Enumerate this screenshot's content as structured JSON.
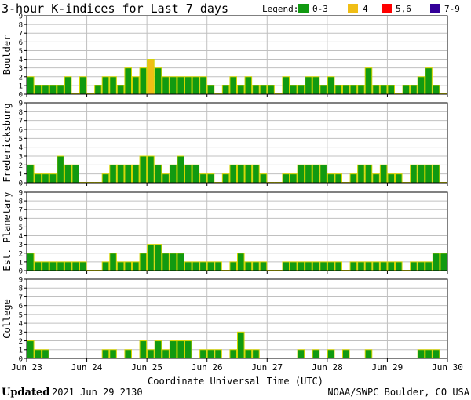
{
  "title": "3-hour K-indices for Last 7 days",
  "legend": {
    "label": "Legend:",
    "items": [
      {
        "label": "0-3",
        "color": "#119a11"
      },
      {
        "label": "4",
        "color": "#f0be16"
      },
      {
        "label": "5,6",
        "color": "#ff0000"
      },
      {
        "label": "7-9",
        "color": "#330099"
      }
    ]
  },
  "footer": {
    "updated_label": "Updated",
    "updated_value": "2021 Jun 29 2130",
    "source": "NOAA/SWPC Boulder, CO USA"
  },
  "colors": {
    "bar_stroke": "#d4d400",
    "grid": "#c0c0c0",
    "axis": "#000000"
  },
  "chart_data": {
    "type": "bar",
    "xlabel": "Coordinate Universal Time (UTC)",
    "x_ticks": [
      "Jun 23",
      "Jun 24",
      "Jun 25",
      "Jun 26",
      "Jun 27",
      "Jun 28",
      "Jun 29",
      "Jun 30"
    ],
    "ylim": [
      0,
      9
    ],
    "y_ticks": [
      0,
      1,
      2,
      3,
      4,
      5,
      6,
      7,
      8,
      9
    ],
    "grid": true,
    "legend_position": "top-right",
    "intervals_per_day": 8,
    "series": [
      {
        "name": "Boulder",
        "values": [
          2,
          1,
          1,
          1,
          1,
          2,
          0,
          2,
          0,
          1,
          2,
          2,
          1,
          3,
          2,
          3,
          4,
          3,
          2,
          2,
          2,
          2,
          2,
          2,
          1,
          0,
          1,
          2,
          1,
          2,
          1,
          1,
          1,
          0,
          2,
          1,
          1,
          2,
          2,
          1,
          2,
          1,
          1,
          1,
          1,
          3,
          1,
          1,
          1,
          0,
          1,
          1,
          2,
          3,
          1,
          0
        ]
      },
      {
        "name": "Fredericksburg",
        "values": [
          2,
          1,
          1,
          1,
          3,
          2,
          2,
          0,
          0,
          0,
          1,
          2,
          2,
          2,
          2,
          3,
          3,
          2,
          1,
          2,
          3,
          2,
          2,
          1,
          1,
          0,
          1,
          2,
          2,
          2,
          2,
          1,
          0,
          0,
          1,
          1,
          2,
          2,
          2,
          2,
          1,
          1,
          0,
          1,
          2,
          2,
          1,
          2,
          1,
          1,
          0,
          2,
          2,
          2,
          2,
          0
        ]
      },
      {
        "name": "Est. Planetary",
        "values": [
          2,
          1,
          1,
          1,
          1,
          1,
          1,
          1,
          0,
          0,
          1,
          2,
          1,
          1,
          1,
          2,
          3,
          3,
          2,
          2,
          2,
          1,
          1,
          1,
          1,
          1,
          0,
          1,
          2,
          1,
          1,
          1,
          0,
          0,
          1,
          1,
          1,
          1,
          1,
          1,
          1,
          1,
          0,
          1,
          1,
          1,
          1,
          1,
          1,
          1,
          0,
          1,
          1,
          1,
          2,
          2
        ]
      },
      {
        "name": "College",
        "values": [
          2,
          1,
          1,
          0,
          0,
          0,
          0,
          0,
          0,
          0,
          1,
          1,
          0,
          1,
          0,
          2,
          1,
          2,
          1,
          2,
          2,
          2,
          0,
          1,
          1,
          1,
          0,
          1,
          3,
          1,
          1,
          0,
          0,
          0,
          0,
          0,
          1,
          0,
          1,
          0,
          1,
          0,
          1,
          0,
          0,
          1,
          0,
          0,
          0,
          0,
          0,
          0,
          1,
          1,
          1,
          0
        ]
      }
    ]
  }
}
